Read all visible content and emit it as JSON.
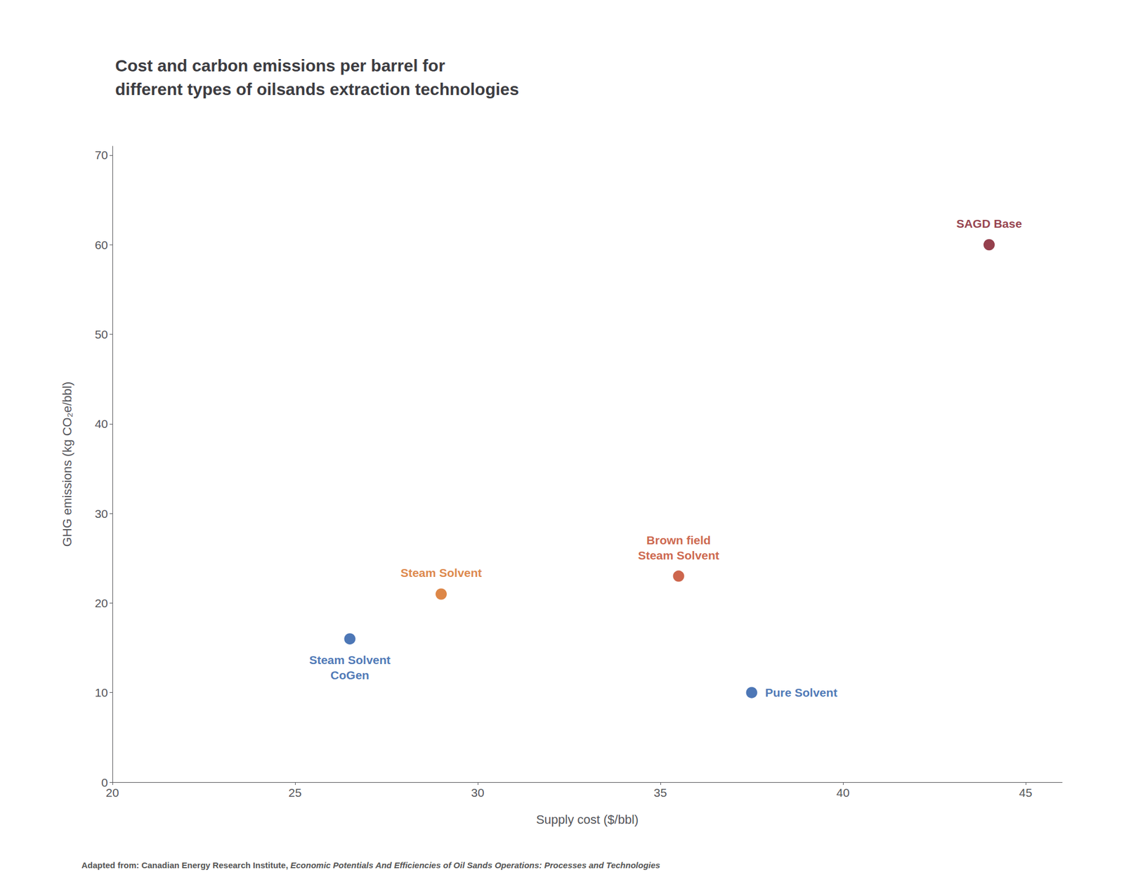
{
  "chart_data": {
    "type": "scatter",
    "title": "Cost and carbon emissions per barrel for\ndifferent types of oilsands extraction technologies",
    "xlabel": "Supply cost ($/bbl)",
    "ylabel": "GHG emissions (kg CO₂e/bbl)",
    "footnote": [
      "Adapted from: Canadian Energy Research Institute, ",
      "Economic Potentials And Efficiencies of Oil Sands Operations: Processes and Technologies"
    ],
    "x": [
      26.5,
      29.0,
      35.5,
      37.5,
      44.0
    ],
    "values": [
      16,
      21,
      23,
      10,
      60
    ],
    "labels": [
      "Steam Solvent\nCoGen",
      "Steam Solvent",
      "Brown field\nSteam Solvent",
      "Pure Solvent",
      "SAGD Base"
    ],
    "colors": [
      "#2055a4",
      "#d4691a",
      "#c04020",
      "#2055a4",
      "#7a1020"
    ],
    "xlim": [
      20,
      46
    ],
    "ylim": [
      0,
      71
    ],
    "xticks": [
      20,
      25,
      30,
      35,
      40,
      45
    ],
    "yticks": [
      0,
      10,
      20,
      30,
      40,
      50,
      60,
      70
    ],
    "grid": false
  }
}
